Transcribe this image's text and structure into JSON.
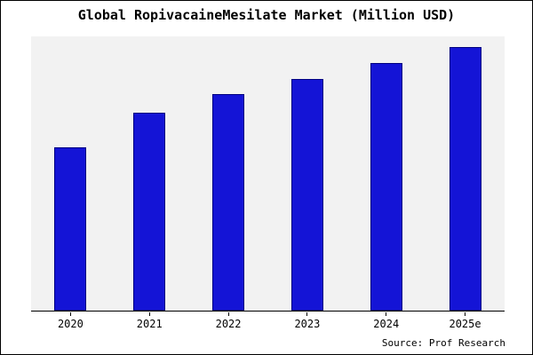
{
  "header": {
    "title": "Global RopivacaineMesilate Market (Million USD)"
  },
  "footer": {
    "source": "Source: Prof Research"
  },
  "colors": {
    "bar_fill": "#1414d6",
    "bar_border": "#000080",
    "plot_bg": "#f2f2f2",
    "page_bg": "#ffffff",
    "frame": "#000000"
  },
  "chart_data": {
    "type": "bar",
    "title": "Global RopivacaineMesilate Market (Million USD)",
    "categories": [
      "2020",
      "2021",
      "2022",
      "2023",
      "2024",
      "2025e"
    ],
    "values": [
      62,
      75,
      82,
      88,
      94,
      100
    ],
    "xlabel": "",
    "ylabel": "",
    "ylim": [
      0,
      104
    ],
    "grid": false,
    "legend": false,
    "y_axis_labels_visible": false,
    "annotations": [
      "Source: Prof Research"
    ]
  }
}
